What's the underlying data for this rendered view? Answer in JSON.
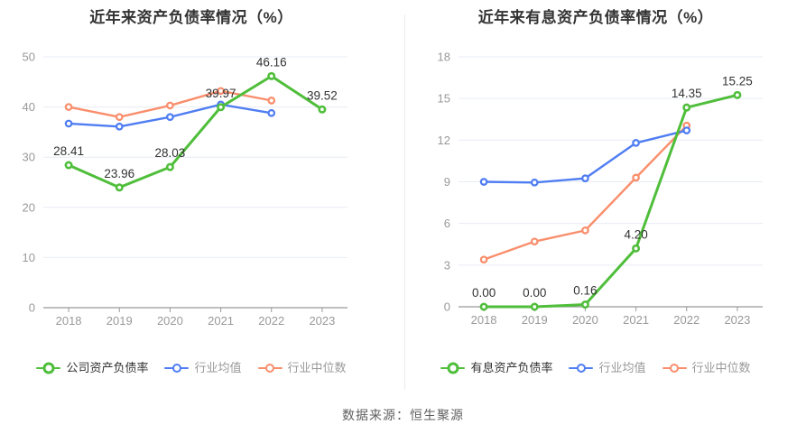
{
  "source_note": "数据来源：恒生聚源",
  "palette": {
    "green": "#4fbe3a",
    "blue": "#4f7df2",
    "orange": "#f98e6c",
    "grid": "#e7ecf5",
    "axis": "#999999",
    "tick_text": "#999999",
    "value_label": "#333333",
    "title_text": "#333333",
    "divider": "#ebebeb"
  },
  "chart_data": [
    {
      "type": "line",
      "title": "近年来资产负债率情况（%）",
      "categories": [
        "2018",
        "2019",
        "2020",
        "2021",
        "2022",
        "2023"
      ],
      "y_ticks": [
        0,
        10,
        20,
        30,
        40,
        50
      ],
      "ylim": [
        0,
        50
      ],
      "grid": true,
      "legend_position": "bottom",
      "series": [
        {
          "name": "公司资产负债率",
          "color": "#4fbe3a",
          "label_color": "#333333",
          "emphasis": true,
          "values": [
            28.41,
            23.96,
            28.03,
            39.97,
            46.16,
            39.52
          ],
          "point_labels": [
            "28.41",
            "23.96",
            "28.03",
            "39.97",
            "46.16",
            "39.52"
          ]
        },
        {
          "name": "行业均值",
          "color": "#4f7df2",
          "label_color": "#999999",
          "emphasis": false,
          "values": [
            36.7,
            36.1,
            38.0,
            40.5,
            38.8
          ]
        },
        {
          "name": "行业中位数",
          "color": "#f98e6c",
          "label_color": "#999999",
          "emphasis": false,
          "values": [
            40.0,
            38.0,
            40.3,
            43.2,
            41.3
          ]
        }
      ]
    },
    {
      "type": "line",
      "title": "近年来有息资产负债率情况（%）",
      "categories": [
        "2018",
        "2019",
        "2020",
        "2021",
        "2022",
        "2023"
      ],
      "y_ticks": [
        0,
        3,
        6,
        9,
        12,
        15,
        18
      ],
      "ylim": [
        0,
        18
      ],
      "grid": true,
      "legend_position": "bottom",
      "series": [
        {
          "name": "有息资产负债率",
          "color": "#4fbe3a",
          "label_color": "#333333",
          "emphasis": true,
          "values": [
            0.0,
            0.0,
            0.16,
            4.2,
            14.35,
            15.25
          ],
          "point_labels": [
            "0.00",
            "0.00",
            "0.16",
            "4.20",
            "14.35",
            "15.25"
          ]
        },
        {
          "name": "行业均值",
          "color": "#4f7df2",
          "label_color": "#999999",
          "emphasis": false,
          "values": [
            9.0,
            8.95,
            9.25,
            11.8,
            12.7
          ]
        },
        {
          "name": "行业中位数",
          "color": "#f98e6c",
          "label_color": "#999999",
          "emphasis": false,
          "values": [
            3.4,
            4.7,
            5.5,
            9.3,
            13.05
          ]
        }
      ]
    }
  ]
}
